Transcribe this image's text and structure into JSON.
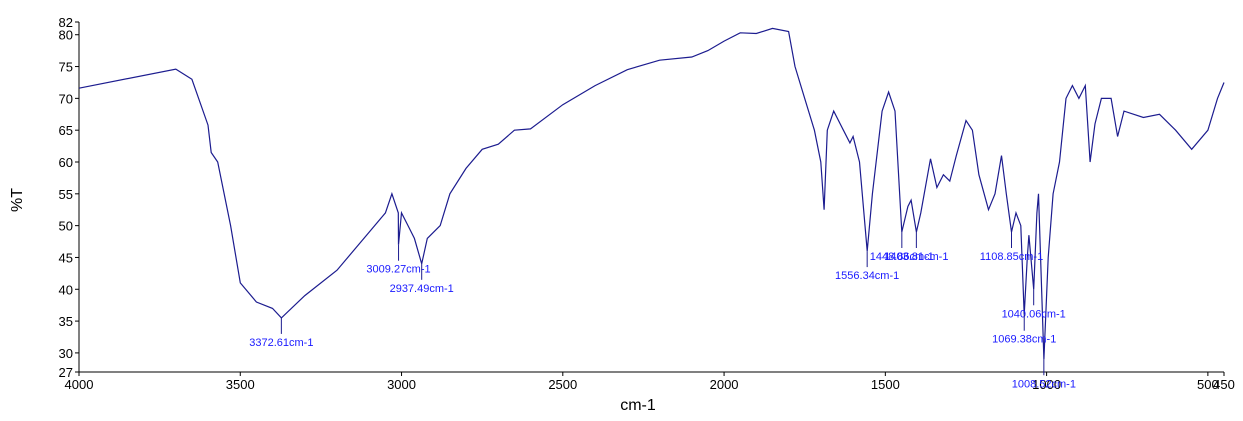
{
  "chart_data": {
    "type": "line",
    "x_label": "cm-1",
    "y_label": "%T",
    "xlim": [
      4000,
      450
    ],
    "ylim": [
      27,
      82
    ],
    "xticks": [
      4000,
      3500,
      3000,
      2500,
      2000,
      1500,
      1000,
      500,
      450
    ],
    "yticks": [
      27,
      30,
      35,
      40,
      45,
      50,
      55,
      60,
      65,
      70,
      75,
      80,
      82
    ],
    "series": [
      {
        "color": "#1c1c8f",
        "x": [
          4000,
          3700,
          3650,
          3600,
          3590,
          3570,
          3530,
          3500,
          3450,
          3400,
          3372.61,
          3300,
          3200,
          3100,
          3050,
          3030,
          3010,
          3009.27,
          3000,
          2980,
          2960,
          2937.49,
          2920,
          2880,
          2850,
          2800,
          2750,
          2700,
          2650,
          2600,
          2500,
          2400,
          2300,
          2200,
          2100,
          2050,
          2000,
          1950,
          1900,
          1850,
          1800,
          1780,
          1750,
          1720,
          1700,
          1690,
          1680,
          1660,
          1630,
          1610,
          1600,
          1580,
          1556.34,
          1540,
          1510,
          1490,
          1470,
          1448.86,
          1430,
          1420,
          1403.81,
          1390,
          1360,
          1340,
          1320,
          1300,
          1280,
          1250,
          1230,
          1210,
          1180,
          1160,
          1140,
          1125,
          1108.85,
          1095,
          1080,
          1069.38,
          1060,
          1055,
          1040.06,
          1030,
          1025,
          1008.52,
          995,
          980,
          960,
          940,
          920,
          900,
          880,
          865,
          850,
          830,
          800,
          780,
          760,
          700,
          650,
          600,
          550,
          500,
          470,
          450
        ],
        "values": [
          71.6,
          74.6,
          73,
          65.8,
          61.5,
          60,
          50,
          41,
          38,
          37,
          35.5,
          39,
          43,
          49,
          52,
          55,
          52,
          47,
          52,
          50,
          48,
          44,
          48,
          50,
          55,
          59,
          62,
          62.8,
          65,
          65.2,
          69,
          72,
          74.5,
          76,
          76.5,
          77.5,
          79,
          80.3,
          80.2,
          81,
          80.5,
          75,
          70,
          65,
          60,
          52.5,
          65,
          68,
          65,
          63,
          64,
          60,
          46,
          55,
          68,
          71,
          68,
          49,
          53,
          54,
          49,
          52,
          60.5,
          56,
          58,
          57,
          61,
          66.5,
          65,
          58,
          52.5,
          55,
          61,
          55,
          49,
          52,
          50,
          36,
          45,
          48.5,
          40,
          52,
          55,
          29,
          45,
          55,
          60,
          70,
          72,
          70,
          72,
          60,
          66,
          70,
          70,
          64,
          68,
          67,
          67.5,
          65,
          62,
          65,
          70,
          72.5
        ]
      }
    ],
    "annotations": [
      {
        "x": 3372.61,
        "y": 35.5,
        "label": "3372.61cm-1"
      },
      {
        "x": 3009.27,
        "y": 47,
        "label": "3009.27cm-1"
      },
      {
        "x": 2937.49,
        "y": 44,
        "label": "2937.49cm-1"
      },
      {
        "x": 1556.34,
        "y": 46,
        "label": "1556.34cm-1"
      },
      {
        "x": 1448.86,
        "y": 49,
        "label": "1448.86cm-1"
      },
      {
        "x": 1403.81,
        "y": 49,
        "label": "1403.81cm-1"
      },
      {
        "x": 1108.85,
        "y": 49,
        "label": "1108.85cm-1"
      },
      {
        "x": 1040.06,
        "y": 40,
        "label": "1040.06cm-1"
      },
      {
        "x": 1008.52,
        "y": 29,
        "label": "1008.52cm-1"
      },
      {
        "x": 1069.38,
        "y": 36,
        "label": "1069.38cm-1"
      }
    ]
  }
}
